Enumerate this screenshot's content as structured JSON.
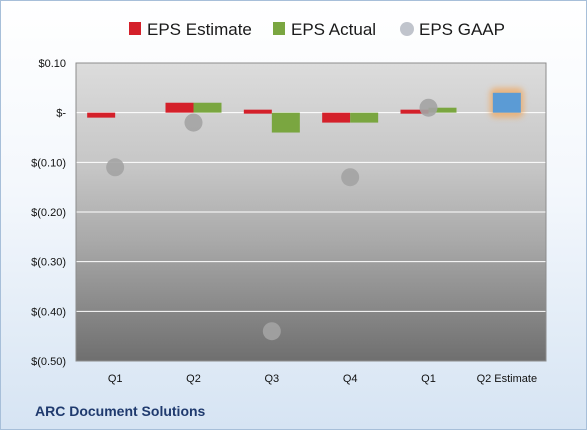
{
  "chart_data": {
    "type": "bar",
    "categories": [
      "Q1",
      "Q2",
      "Q3",
      "Q4",
      "Q1",
      "Q2 Estimate"
    ],
    "series": [
      {
        "name": "EPS Estimate",
        "color": "#d4202a",
        "values": [
          -0.01,
          0.02,
          0.0,
          -0.02,
          0.0,
          null
        ]
      },
      {
        "name": "EPS Actual",
        "color": "#7aa640",
        "values": [
          null,
          0.02,
          -0.04,
          -0.02,
          0.01,
          null
        ]
      },
      {
        "name": "EPS GAAP",
        "color": "#a3a3a3",
        "type": "scatter",
        "values": [
          -0.11,
          -0.02,
          -0.44,
          -0.13,
          0.01,
          null
        ]
      },
      {
        "name": "Q2 Estimate",
        "color": "#5b9bd5",
        "highlight": "#f0a860",
        "values": [
          null,
          null,
          null,
          null,
          null,
          0.04
        ]
      }
    ],
    "ylim": [
      -0.5,
      0.1
    ],
    "yticks": [
      {
        "value": 0.1,
        "label": "$0.10"
      },
      {
        "value": 0.0,
        "label": "$-"
      },
      {
        "value": -0.1,
        "label": "$(0.10)"
      },
      {
        "value": -0.2,
        "label": "$(0.20)"
      },
      {
        "value": -0.3,
        "label": "$(0.30)"
      },
      {
        "value": -0.4,
        "label": "$(0.40)"
      },
      {
        "value": -0.5,
        "label": "$(0.50)"
      }
    ],
    "legend": "top",
    "grid": true
  },
  "company": "ARC Document Solutions"
}
